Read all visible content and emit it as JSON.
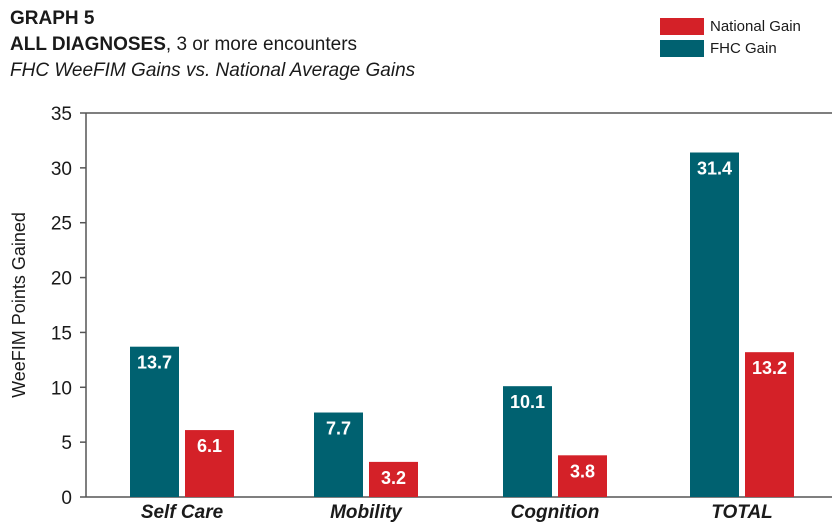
{
  "header": {
    "graph_label": "GRAPH 5",
    "subtitle_bold": "ALL DIAGNOSES",
    "subtitle_rest": ", 3 or more encounters",
    "caption": "FHC WeeFIM Gains vs. National Average Gains"
  },
  "legend": [
    {
      "name": "National Gain",
      "color": "#d42128"
    },
    {
      "name": "FHC Gain",
      "color": "#006170"
    }
  ],
  "chart_data": {
    "type": "bar",
    "ylabel": "WeeFIM Points Gained",
    "xlabel": "",
    "ylim": [
      0,
      35
    ],
    "yticks": [
      0,
      5,
      10,
      15,
      20,
      25,
      30,
      35
    ],
    "categories": [
      "Self Care",
      "Mobility",
      "Cognition",
      "TOTAL"
    ],
    "series": [
      {
        "name": "FHC Gain",
        "color": "#006170",
        "values": [
          13.7,
          7.7,
          10.1,
          31.4
        ],
        "labels": [
          "13.7",
          "7.7",
          "10.1",
          "31.4"
        ]
      },
      {
        "name": "National Gain",
        "color": "#d42128",
        "values": [
          6.1,
          3.2,
          3.8,
          13.2
        ],
        "labels": [
          "6.1",
          "3.2",
          "3.8",
          "13.2"
        ]
      }
    ],
    "grid": false,
    "legend_position": "top-right"
  }
}
